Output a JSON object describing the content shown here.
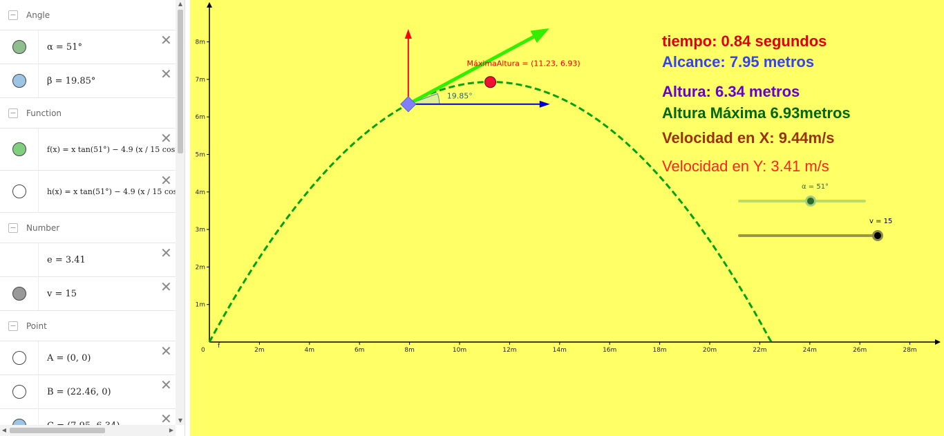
{
  "algebra": {
    "groups": [
      {
        "title": "Angle",
        "items": [
          {
            "color": "#8fbf8f",
            "expr": "α = 51°"
          },
          {
            "color": "#9cc4e4",
            "expr": "β = 19.85°"
          }
        ]
      },
      {
        "title": "Function",
        "items": [
          {
            "color": "#7fcf7f",
            "expr": "f(x) = x tan(51°) − 4.9 (x / 15 cos",
            "tall": true
          },
          {
            "color": "#ffffff",
            "expr": "h(x) = x tan(51°) − 4.9 (x / 15 cos",
            "tall": true
          }
        ]
      },
      {
        "title": "Number",
        "items": [
          {
            "color": "",
            "expr": "e = 3.41"
          },
          {
            "color": "#999999",
            "expr": "v = 15"
          }
        ]
      },
      {
        "title": "Point",
        "items": [
          {
            "color": "#ffffff",
            "expr": "A = (0, 0)"
          },
          {
            "color": "#ffffff",
            "expr": "B = (22.46, 0)"
          },
          {
            "color": "#9cc4e4",
            "expr": "C = (7.95, 6.34)"
          }
        ]
      }
    ],
    "delete_glyph": "✕"
  },
  "graphics": {
    "background": "#ffff66",
    "origin_label": "0",
    "f_label": "f",
    "x_tick_labels": [
      "2m",
      "4m",
      "6m",
      "8m",
      "10m",
      "12m",
      "14m",
      "16m",
      "18m",
      "20m",
      "22m",
      "24m",
      "26m",
      "28m"
    ],
    "y_tick_labels": [
      "1m",
      "2m",
      "3m",
      "4m",
      "5m",
      "6m",
      "7m",
      "8m"
    ],
    "max_label": "MáximaAltura = (11.23, 6.93)",
    "angle_label": "19.85°",
    "trajectory": {
      "v": 15,
      "alpha_deg": 51,
      "g_half": 4.9,
      "range_end": 22.46
    },
    "point_C": {
      "x": 7.95,
      "y": 6.34
    },
    "point_max": {
      "x": 11.23,
      "y": 6.93
    },
    "arrow_v_vertical_len": 3.41,
    "arrow_h_len": 9.44
  },
  "info": {
    "tiempo": "tiempo: 0.84 segundos",
    "alcance": "Alcance: 7.95 metros",
    "altura": "Altura:  6.34 metros",
    "altura_max": "Altura Máxima 6.93metros",
    "vel_x": "Velocidad en X: 9.44m/s",
    "vel_y": "Velocidad en Y: 3.41 m/s"
  },
  "colors": {
    "tiempo": "#dd0000",
    "alcance": "#3344ee",
    "altura": "#6600cc",
    "altura_max": "#006600",
    "vel_x": "#993300",
    "vel_y": "#ff2222",
    "curve": "#00a000",
    "arrow_v": "#33ee00",
    "arrow_up": "#ff0000",
    "arrow_h": "#0000cc"
  },
  "sliders": {
    "alpha": {
      "caption": "α = 51°",
      "value": 51,
      "min": 0,
      "max": 90
    },
    "v": {
      "caption": "v = 15",
      "value": 15,
      "min": 0,
      "max": 15
    }
  }
}
